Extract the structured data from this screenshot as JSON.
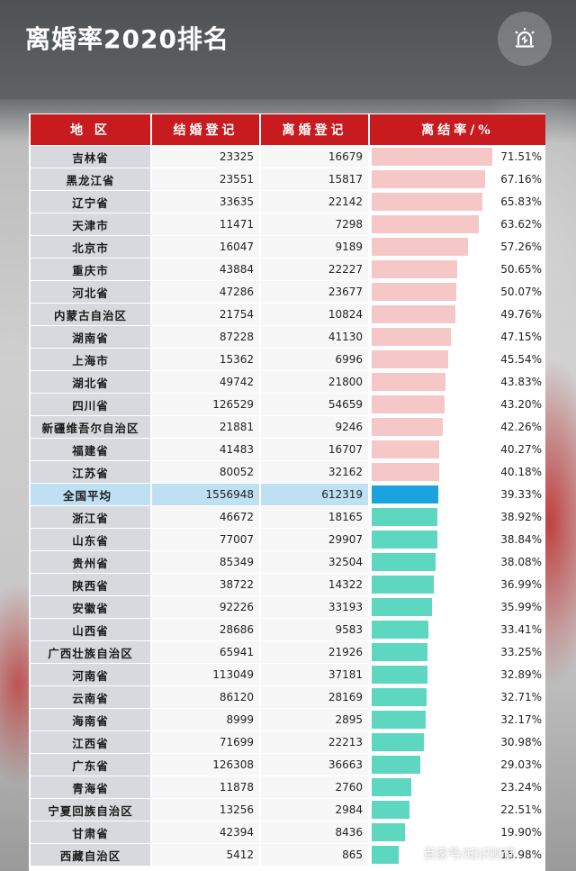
{
  "header": {
    "title": "离婚率2020排名",
    "alert_icon": "siren-icon"
  },
  "table": {
    "columns": [
      "地 区",
      "结婚登记",
      "离婚登记",
      "离结率/%"
    ],
    "rows": [
      {
        "region": "吉林省",
        "marriage": "23325",
        "divorce": "16679",
        "rate": "71.51%",
        "rate_value": 71.51,
        "level": "high"
      },
      {
        "region": "黑龙江省",
        "marriage": "23551",
        "divorce": "15817",
        "rate": "67.16%",
        "rate_value": 67.16,
        "level": "high"
      },
      {
        "region": "辽宁省",
        "marriage": "33635",
        "divorce": "22142",
        "rate": "65.83%",
        "rate_value": 65.83,
        "level": "high"
      },
      {
        "region": "天津市",
        "marriage": "11471",
        "divorce": "7298",
        "rate": "63.62%",
        "rate_value": 63.62,
        "level": "high"
      },
      {
        "region": "北京市",
        "marriage": "16047",
        "divorce": "9189",
        "rate": "57.26%",
        "rate_value": 57.26,
        "level": "high"
      },
      {
        "region": "重庆市",
        "marriage": "43884",
        "divorce": "22227",
        "rate": "50.65%",
        "rate_value": 50.65,
        "level": "high"
      },
      {
        "region": "河北省",
        "marriage": "47286",
        "divorce": "23677",
        "rate": "50.07%",
        "rate_value": 50.07,
        "level": "high"
      },
      {
        "region": "内蒙古自治区",
        "marriage": "21754",
        "divorce": "10824",
        "rate": "49.76%",
        "rate_value": 49.76,
        "level": "high"
      },
      {
        "region": "湖南省",
        "marriage": "87228",
        "divorce": "41130",
        "rate": "47.15%",
        "rate_value": 47.15,
        "level": "high"
      },
      {
        "region": "上海市",
        "marriage": "15362",
        "divorce": "6996",
        "rate": "45.54%",
        "rate_value": 45.54,
        "level": "high"
      },
      {
        "region": "湖北省",
        "marriage": "49742",
        "divorce": "21800",
        "rate": "43.83%",
        "rate_value": 43.83,
        "level": "high"
      },
      {
        "region": "四川省",
        "marriage": "126529",
        "divorce": "54659",
        "rate": "43.20%",
        "rate_value": 43.2,
        "level": "high"
      },
      {
        "region": "新疆维吾尔自治区",
        "marriage": "21881",
        "divorce": "9246",
        "rate": "42.26%",
        "rate_value": 42.26,
        "level": "high"
      },
      {
        "region": "福建省",
        "marriage": "41483",
        "divorce": "16707",
        "rate": "40.27%",
        "rate_value": 40.27,
        "level": "high"
      },
      {
        "region": "江苏省",
        "marriage": "80052",
        "divorce": "32162",
        "rate": "40.18%",
        "rate_value": 40.18,
        "level": "high"
      },
      {
        "region": "全国平均",
        "marriage": "1556948",
        "divorce": "612319",
        "rate": "39.33%",
        "rate_value": 39.33,
        "level": "avg"
      },
      {
        "region": "浙江省",
        "marriage": "46672",
        "divorce": "18165",
        "rate": "38.92%",
        "rate_value": 38.92,
        "level": "low"
      },
      {
        "region": "山东省",
        "marriage": "77007",
        "divorce": "29907",
        "rate": "38.84%",
        "rate_value": 38.84,
        "level": "low"
      },
      {
        "region": "贵州省",
        "marriage": "85349",
        "divorce": "32504",
        "rate": "38.08%",
        "rate_value": 38.08,
        "level": "low"
      },
      {
        "region": "陕西省",
        "marriage": "38722",
        "divorce": "14322",
        "rate": "36.99%",
        "rate_value": 36.99,
        "level": "low"
      },
      {
        "region": "安徽省",
        "marriage": "92226",
        "divorce": "33193",
        "rate": "35.99%",
        "rate_value": 35.99,
        "level": "low"
      },
      {
        "region": "山西省",
        "marriage": "28686",
        "divorce": "9583",
        "rate": "33.41%",
        "rate_value": 33.41,
        "level": "low"
      },
      {
        "region": "广西壮族自治区",
        "marriage": "65941",
        "divorce": "21926",
        "rate": "33.25%",
        "rate_value": 33.25,
        "level": "low"
      },
      {
        "region": "河南省",
        "marriage": "113049",
        "divorce": "37181",
        "rate": "32.89%",
        "rate_value": 32.89,
        "level": "low"
      },
      {
        "region": "云南省",
        "marriage": "86120",
        "divorce": "28169",
        "rate": "32.71%",
        "rate_value": 32.71,
        "level": "low"
      },
      {
        "region": "海南省",
        "marriage": "8999",
        "divorce": "2895",
        "rate": "32.17%",
        "rate_value": 32.17,
        "level": "low"
      },
      {
        "region": "江西省",
        "marriage": "71699",
        "divorce": "22213",
        "rate": "30.98%",
        "rate_value": 30.98,
        "level": "low"
      },
      {
        "region": "广东省",
        "marriage": "126308",
        "divorce": "36663",
        "rate": "29.03%",
        "rate_value": 29.03,
        "level": "low"
      },
      {
        "region": "青海省",
        "marriage": "11878",
        "divorce": "2760",
        "rate": "23.24%",
        "rate_value": 23.24,
        "level": "low"
      },
      {
        "region": "宁夏回族自治区",
        "marriage": "13256",
        "divorce": "2984",
        "rate": "22.51%",
        "rate_value": 22.51,
        "level": "low"
      },
      {
        "region": "甘肃省",
        "marriage": "42394",
        "divorce": "8436",
        "rate": "19.90%",
        "rate_value": 19.9,
        "level": "low"
      },
      {
        "region": "西藏自治区",
        "marriage": "5412",
        "divorce": "865",
        "rate": "15.98%",
        "rate_value": 15.98,
        "level": "low"
      }
    ]
  },
  "watermark": "百家号/知识财健",
  "colors": {
    "header_red": "#c71b1f",
    "bar_high": "#f6c7c7",
    "bar_low": "#5ed7c0",
    "bar_average": "#1aa3df",
    "average_row": "#bfe0f2"
  }
}
